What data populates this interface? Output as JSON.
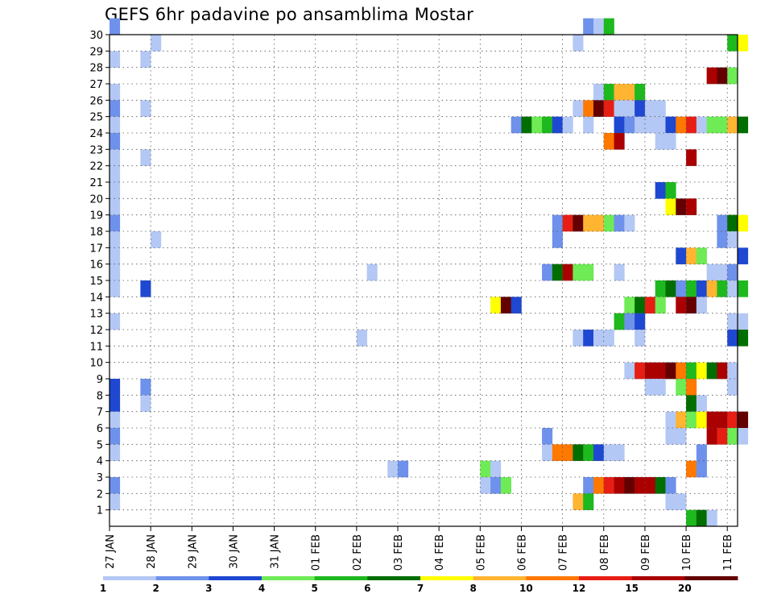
{
  "title": "GEFS 6hr padavine po ansamblima Mostar",
  "chart_data": {
    "type": "heatmap",
    "title": "GEFS 6hr padavine po ansamblima Mostar",
    "xlim": [
      0,
      15.25
    ],
    "ylim": [
      0,
      30
    ],
    "x_tick_labels": [
      "27 JAN",
      "28 JAN",
      "29 JAN",
      "30 JAN",
      "31 JAN",
      "01 FEB",
      "02 FEB",
      "03 FEB",
      "04 FEB",
      "05 FEB",
      "06 FEB",
      "07 FEB",
      "08 FEB",
      "09 FEB",
      "10 FEB",
      "11 FEB"
    ],
    "y_tick_labels": [
      "1",
      "2",
      "3",
      "4",
      "5",
      "6",
      "7",
      "8",
      "9",
      "10",
      "11",
      "12",
      "13",
      "14",
      "15",
      "16",
      "17",
      "18",
      "19",
      "20",
      "21",
      "22",
      "23",
      "24",
      "25",
      "26",
      "27",
      "28",
      "29",
      "30"
    ],
    "grid": true,
    "legend": {
      "placement": "bottom",
      "labels": [
        "1",
        "2",
        "3",
        "4",
        "5",
        "6",
        "7",
        "8",
        "10",
        "12",
        "15",
        "20"
      ],
      "colors": [
        "#b4c8f5",
        "#6e91eb",
        "#1e48d2",
        "#6eeb55",
        "#1eb91e",
        "#006e00",
        "#ffff00",
        "#ffb432",
        "#ff7800",
        "#e61e14",
        "#aa0000",
        "#640000"
      ]
    },
    "cells": [
      [
        30,
        0,
        "b"
      ],
      [
        30,
        11.5,
        "b"
      ],
      [
        30,
        11.75,
        "a"
      ],
      [
        30,
        12,
        "e"
      ],
      [
        29,
        1,
        "a"
      ],
      [
        29,
        11.25,
        "a"
      ],
      [
        29,
        15,
        "e"
      ],
      [
        29,
        15.25,
        "g"
      ],
      [
        28,
        0,
        "a"
      ],
      [
        28,
        0.75,
        "a"
      ],
      [
        27,
        14.5,
        "k"
      ],
      [
        27,
        14.75,
        "l"
      ],
      [
        27,
        15,
        "d"
      ],
      [
        26,
        0,
        "a"
      ],
      [
        26,
        11.75,
        "a"
      ],
      [
        26,
        12,
        "e"
      ],
      [
        26,
        12.25,
        "h"
      ],
      [
        26,
        12.5,
        "h"
      ],
      [
        26,
        12.75,
        "e"
      ],
      [
        25,
        0,
        "b"
      ],
      [
        25,
        0.75,
        "a"
      ],
      [
        25,
        11.25,
        "a"
      ],
      [
        25,
        11.5,
        "i"
      ],
      [
        25,
        11.75,
        "l"
      ],
      [
        25,
        12,
        "j"
      ],
      [
        25,
        12.25,
        "a"
      ],
      [
        25,
        12.5,
        "a"
      ],
      [
        25,
        12.75,
        "c"
      ],
      [
        25,
        13,
        "a"
      ],
      [
        25,
        13.25,
        "a"
      ],
      [
        24,
        0,
        "a"
      ],
      [
        24,
        9.75,
        "b"
      ],
      [
        24,
        10,
        "f"
      ],
      [
        24,
        10.25,
        "d"
      ],
      [
        24,
        10.5,
        "e"
      ],
      [
        24,
        10.75,
        "c"
      ],
      [
        24,
        11,
        "a"
      ],
      [
        24,
        11.5,
        "a"
      ],
      [
        24,
        12.25,
        "c"
      ],
      [
        24,
        12.5,
        "b"
      ],
      [
        24,
        12.75,
        "a"
      ],
      [
        24,
        13,
        "a"
      ],
      [
        24,
        13.25,
        "a"
      ],
      [
        24,
        13.5,
        "c"
      ],
      [
        24,
        13.75,
        "i"
      ],
      [
        24,
        14,
        "j"
      ],
      [
        24,
        14.25,
        "a"
      ],
      [
        24,
        14.5,
        "d"
      ],
      [
        24,
        14.75,
        "d"
      ],
      [
        24,
        15,
        "h"
      ],
      [
        24,
        15.25,
        "f"
      ],
      [
        23,
        0,
        "b"
      ],
      [
        23,
        12,
        "i"
      ],
      [
        23,
        12.25,
        "k"
      ],
      [
        23,
        13.25,
        "a"
      ],
      [
        23,
        13.5,
        "a"
      ],
      [
        22,
        0,
        "a"
      ],
      [
        22,
        0.75,
        "a"
      ],
      [
        22,
        14,
        "k"
      ],
      [
        21,
        0,
        "a"
      ],
      [
        20,
        0,
        "a"
      ],
      [
        20,
        13.25,
        "c"
      ],
      [
        20,
        13.5,
        "e"
      ],
      [
        19,
        0,
        "a"
      ],
      [
        19,
        13.5,
        "g"
      ],
      [
        19,
        13.75,
        "l"
      ],
      [
        19,
        14,
        "k"
      ],
      [
        18,
        0,
        "b"
      ],
      [
        18,
        10.75,
        "b"
      ],
      [
        18,
        11,
        "j"
      ],
      [
        18,
        11.25,
        "l"
      ],
      [
        18,
        11.5,
        "h"
      ],
      [
        18,
        11.75,
        "h"
      ],
      [
        18,
        12,
        "d"
      ],
      [
        18,
        12.25,
        "b"
      ],
      [
        18,
        12.5,
        "a"
      ],
      [
        18,
        14.75,
        "b"
      ],
      [
        18,
        15,
        "f"
      ],
      [
        18,
        15.25,
        "g"
      ],
      [
        17,
        0,
        "a"
      ],
      [
        17,
        1,
        "a"
      ],
      [
        17,
        10.75,
        "b"
      ],
      [
        17,
        14.75,
        "b"
      ],
      [
        17,
        15,
        "a"
      ],
      [
        16,
        0,
        "a"
      ],
      [
        16,
        13.75,
        "c"
      ],
      [
        16,
        14,
        "h"
      ],
      [
        16,
        14.25,
        "d"
      ],
      [
        16,
        15.25,
        "c"
      ],
      [
        15,
        0,
        "a"
      ],
      [
        15,
        6.25,
        "a"
      ],
      [
        15,
        10.5,
        "b"
      ],
      [
        15,
        10.75,
        "f"
      ],
      [
        15,
        11,
        "k"
      ],
      [
        15,
        11.25,
        "d"
      ],
      [
        15,
        11.5,
        "d"
      ],
      [
        15,
        12.25,
        "a"
      ],
      [
        15,
        14.5,
        "a"
      ],
      [
        15,
        14.75,
        "a"
      ],
      [
        15,
        15,
        "b"
      ],
      [
        14,
        0,
        "a"
      ],
      [
        14,
        0.75,
        "c"
      ],
      [
        14,
        13.25,
        "e"
      ],
      [
        14,
        13.5,
        "f"
      ],
      [
        14,
        13.75,
        "b"
      ],
      [
        14,
        14,
        "e"
      ],
      [
        14,
        14.25,
        "c"
      ],
      [
        14,
        14.5,
        "h"
      ],
      [
        14,
        14.75,
        "e"
      ],
      [
        14,
        15,
        "a"
      ],
      [
        14,
        15.25,
        "e"
      ],
      [
        13,
        9.25,
        "g"
      ],
      [
        13,
        9.5,
        "l"
      ],
      [
        13,
        9.75,
        "c"
      ],
      [
        13,
        12.5,
        "d"
      ],
      [
        13,
        12.75,
        "f"
      ],
      [
        13,
        13,
        "j"
      ],
      [
        13,
        13.25,
        "d"
      ],
      [
        13,
        13.75,
        "k"
      ],
      [
        13,
        14,
        "l"
      ],
      [
        13,
        14.25,
        "a"
      ],
      [
        12,
        0,
        "a"
      ],
      [
        12,
        12.25,
        "e"
      ],
      [
        12,
        12.5,
        "b"
      ],
      [
        12,
        12.75,
        "c"
      ],
      [
        12,
        15,
        "a"
      ],
      [
        12,
        15.25,
        "a"
      ],
      [
        11,
        6,
        "a"
      ],
      [
        11,
        11.25,
        "a"
      ],
      [
        11,
        11.5,
        "c"
      ],
      [
        11,
        11.75,
        "a"
      ],
      [
        11,
        12,
        "a"
      ],
      [
        11,
        12.75,
        "a"
      ],
      [
        11,
        15,
        "c"
      ],
      [
        11,
        15.25,
        "f"
      ],
      [
        9,
        12.5,
        "a"
      ],
      [
        9,
        12.75,
        "j"
      ],
      [
        9,
        13,
        "k"
      ],
      [
        9,
        13.25,
        "k"
      ],
      [
        9,
        13.5,
        "l"
      ],
      [
        9,
        13.75,
        "i"
      ],
      [
        9,
        14,
        "e"
      ],
      [
        9,
        14.25,
        "g"
      ],
      [
        9,
        14.5,
        "f"
      ],
      [
        9,
        14.75,
        "k"
      ],
      [
        9,
        15,
        "a"
      ],
      [
        8,
        0,
        "c"
      ],
      [
        8,
        0.75,
        "b"
      ],
      [
        8,
        13,
        "a"
      ],
      [
        8,
        13.25,
        "a"
      ],
      [
        8,
        13.75,
        "d"
      ],
      [
        8,
        14,
        "i"
      ],
      [
        8,
        15,
        "a"
      ],
      [
        7,
        0,
        "c"
      ],
      [
        7,
        0.75,
        "a"
      ],
      [
        7,
        14,
        "f"
      ],
      [
        7,
        14.25,
        "a"
      ],
      [
        6,
        0,
        "a"
      ],
      [
        6,
        13.5,
        "a"
      ],
      [
        6,
        13.75,
        "h"
      ],
      [
        6,
        14,
        "d"
      ],
      [
        6,
        14.25,
        "g"
      ],
      [
        6,
        14.5,
        "k"
      ],
      [
        6,
        14.75,
        "k"
      ],
      [
        6,
        15,
        "j"
      ],
      [
        6,
        15.25,
        "l"
      ],
      [
        5,
        0,
        "b"
      ],
      [
        5,
        10.5,
        "b"
      ],
      [
        5,
        13.5,
        "a"
      ],
      [
        5,
        13.75,
        "a"
      ],
      [
        5,
        14.5,
        "k"
      ],
      [
        5,
        14.75,
        "j"
      ],
      [
        5,
        15,
        "d"
      ],
      [
        5,
        15.25,
        "a"
      ],
      [
        4,
        0,
        "a"
      ],
      [
        4,
        10.5,
        "a"
      ],
      [
        4,
        10.75,
        "i"
      ],
      [
        4,
        11,
        "i"
      ],
      [
        4,
        11.25,
        "f"
      ],
      [
        4,
        11.5,
        "e"
      ],
      [
        4,
        11.75,
        "c"
      ],
      [
        4,
        12,
        "a"
      ],
      [
        4,
        12.25,
        "a"
      ],
      [
        4,
        14.25,
        "b"
      ],
      [
        3,
        6.75,
        "a"
      ],
      [
        3,
        7,
        "b"
      ],
      [
        3,
        9,
        "d"
      ],
      [
        3,
        9.25,
        "a"
      ],
      [
        3,
        14,
        "i"
      ],
      [
        3,
        14.25,
        "b"
      ],
      [
        2,
        0,
        "b"
      ],
      [
        2,
        9,
        "a"
      ],
      [
        2,
        9.25,
        "b"
      ],
      [
        2,
        9.5,
        "d"
      ],
      [
        2,
        11.5,
        "b"
      ],
      [
        2,
        11.75,
        "i"
      ],
      [
        2,
        12,
        "j"
      ],
      [
        2,
        12.25,
        "k"
      ],
      [
        2,
        12.5,
        "l"
      ],
      [
        2,
        12.75,
        "k"
      ],
      [
        2,
        13,
        "k"
      ],
      [
        2,
        13.25,
        "f"
      ],
      [
        2,
        13.5,
        "b"
      ],
      [
        1,
        0,
        "a"
      ],
      [
        1,
        11.25,
        "h"
      ],
      [
        1,
        11.5,
        "e"
      ],
      [
        1,
        13.5,
        "a"
      ],
      [
        1,
        13.75,
        "a"
      ],
      [
        0,
        14,
        "e"
      ],
      [
        0,
        14.25,
        "f"
      ],
      [
        0,
        14.5,
        "a"
      ]
    ]
  }
}
